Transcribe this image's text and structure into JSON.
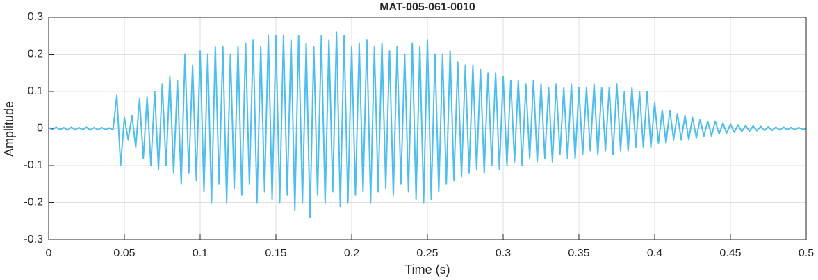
{
  "chart_data": {
    "type": "line",
    "title": "MAT-005-061-0010",
    "xlabel": "Time (s)",
    "ylabel": "Amplitude",
    "color": "#4DBEEE",
    "grid": true,
    "xlim": [
      0,
      0.5
    ],
    "ylim": [
      -0.3,
      0.3
    ],
    "xticks": [
      0,
      0.05,
      0.1,
      0.15,
      0.2,
      0.25,
      0.3,
      0.35,
      0.4,
      0.45,
      0.5
    ],
    "yticks": [
      -0.3,
      -0.2,
      -0.1,
      0,
      0.1,
      0.2,
      0.3
    ],
    "x": [
      0,
      0.0025,
      0.005,
      0.0075,
      0.01,
      0.0125,
      0.015,
      0.0175,
      0.02,
      0.0225,
      0.025,
      0.0275,
      0.03,
      0.0325,
      0.035,
      0.0375,
      0.04,
      0.0425,
      0.045,
      0.0475,
      0.05,
      0.0525,
      0.055,
      0.0575,
      0.06,
      0.0625,
      0.065,
      0.0675,
      0.07,
      0.0725,
      0.075,
      0.0775,
      0.08,
      0.0825,
      0.085,
      0.0875,
      0.09,
      0.0925,
      0.095,
      0.0975,
      0.1,
      0.1025,
      0.105,
      0.1075,
      0.11,
      0.1125,
      0.115,
      0.1175,
      0.12,
      0.1225,
      0.125,
      0.1275,
      0.13,
      0.1325,
      0.135,
      0.1375,
      0.14,
      0.1425,
      0.145,
      0.1475,
      0.15,
      0.1525,
      0.155,
      0.1575,
      0.16,
      0.1625,
      0.165,
      0.1675,
      0.17,
      0.1725,
      0.175,
      0.1775,
      0.18,
      0.1825,
      0.185,
      0.1875,
      0.19,
      0.1925,
      0.195,
      0.1975,
      0.2,
      0.2025,
      0.205,
      0.2075,
      0.21,
      0.2125,
      0.215,
      0.2175,
      0.22,
      0.2225,
      0.225,
      0.2275,
      0.23,
      0.2325,
      0.235,
      0.2375,
      0.24,
      0.2425,
      0.245,
      0.2475,
      0.25,
      0.2525,
      0.255,
      0.2575,
      0.26,
      0.2625,
      0.265,
      0.2675,
      0.27,
      0.2725,
      0.275,
      0.2775,
      0.28,
      0.2825,
      0.285,
      0.2875,
      0.29,
      0.2925,
      0.295,
      0.2975,
      0.3,
      0.3025,
      0.305,
      0.3075,
      0.31,
      0.3125,
      0.315,
      0.3175,
      0.32,
      0.3225,
      0.325,
      0.3275,
      0.33,
      0.3325,
      0.335,
      0.3375,
      0.34,
      0.3425,
      0.345,
      0.3475,
      0.35,
      0.3525,
      0.355,
      0.3575,
      0.36,
      0.3625,
      0.365,
      0.3675,
      0.37,
      0.3725,
      0.375,
      0.3775,
      0.38,
      0.3825,
      0.385,
      0.3875,
      0.39,
      0.3925,
      0.395,
      0.3975,
      0.4,
      0.4025,
      0.405,
      0.4075,
      0.41,
      0.4125,
      0.415,
      0.4175,
      0.42,
      0.4225,
      0.425,
      0.4275,
      0.43,
      0.4325,
      0.435,
      0.4375,
      0.44,
      0.4425,
      0.445,
      0.4475,
      0.45,
      0.4525,
      0.455,
      0.4575,
      0.46,
      0.4625,
      0.465,
      0.4675,
      0.47,
      0.4725,
      0.475,
      0.4775,
      0.48,
      0.4825,
      0.485,
      0.4875,
      0.49,
      0.4925,
      0.495,
      0.4975,
      0.5
    ],
    "values": [
      0.003,
      -0.003,
      0.004,
      -0.003,
      0.003,
      -0.004,
      0.004,
      -0.003,
      0.003,
      -0.003,
      0.004,
      -0.004,
      0.003,
      -0.003,
      0.003,
      -0.003,
      0.002,
      -0.003,
      0.09,
      -0.1,
      0.03,
      -0.03,
      0.035,
      -0.05,
      0.08,
      -0.08,
      0.085,
      -0.1,
      0.1,
      -0.11,
      0.12,
      -0.1,
      0.14,
      -0.12,
      0.13,
      -0.15,
      0.2,
      -0.12,
      0.17,
      -0.14,
      0.21,
      -0.17,
      0.2,
      -0.2,
      0.22,
      -0.15,
      0.22,
      -0.2,
      0.2,
      -0.16,
      0.22,
      -0.18,
      0.23,
      -0.15,
      0.24,
      -0.2,
      0.22,
      -0.17,
      0.25,
      -0.19,
      0.25,
      -0.2,
      0.25,
      -0.18,
      0.24,
      -0.22,
      0.25,
      -0.2,
      0.23,
      -0.24,
      0.22,
      -0.18,
      0.25,
      -0.2,
      0.24,
      -0.17,
      0.26,
      -0.21,
      0.25,
      -0.2,
      0.22,
      -0.18,
      0.23,
      -0.17,
      0.24,
      -0.2,
      0.22,
      -0.17,
      0.23,
      -0.16,
      0.21,
      -0.18,
      0.22,
      -0.15,
      0.2,
      -0.17,
      0.23,
      -0.19,
      0.22,
      -0.2,
      0.24,
      -0.19,
      0.2,
      -0.17,
      0.2,
      -0.15,
      0.21,
      -0.14,
      0.18,
      -0.13,
      0.17,
      -0.12,
      0.17,
      -0.11,
      0.16,
      -0.12,
      0.15,
      -0.1,
      0.15,
      -0.11,
      0.14,
      -0.1,
      0.13,
      -0.09,
      0.13,
      -0.1,
      0.12,
      -0.08,
      0.13,
      -0.09,
      0.12,
      -0.08,
      0.11,
      -0.09,
      0.12,
      -0.07,
      0.11,
      -0.08,
      0.12,
      -0.08,
      0.11,
      -0.07,
      0.11,
      -0.06,
      0.12,
      -0.07,
      0.11,
      -0.06,
      0.11,
      -0.07,
      0.12,
      -0.06,
      0.1,
      -0.06,
      0.11,
      -0.05,
      0.1,
      -0.05,
      0.1,
      -0.05,
      0.07,
      -0.04,
      0.05,
      -0.04,
      0.05,
      -0.03,
      0.04,
      -0.03,
      0.035,
      -0.03,
      0.03,
      -0.025,
      0.025,
      -0.02,
      0.02,
      -0.02,
      0.02,
      -0.015,
      0.015,
      -0.012,
      0.012,
      -0.01,
      0.01,
      -0.008,
      0.008,
      -0.007,
      0.007,
      -0.006,
      0.006,
      -0.005,
      0.005,
      -0.005,
      0.004,
      -0.004,
      0.004,
      -0.003,
      0.003,
      -0.003,
      0.003,
      -0.002,
      0
    ]
  }
}
